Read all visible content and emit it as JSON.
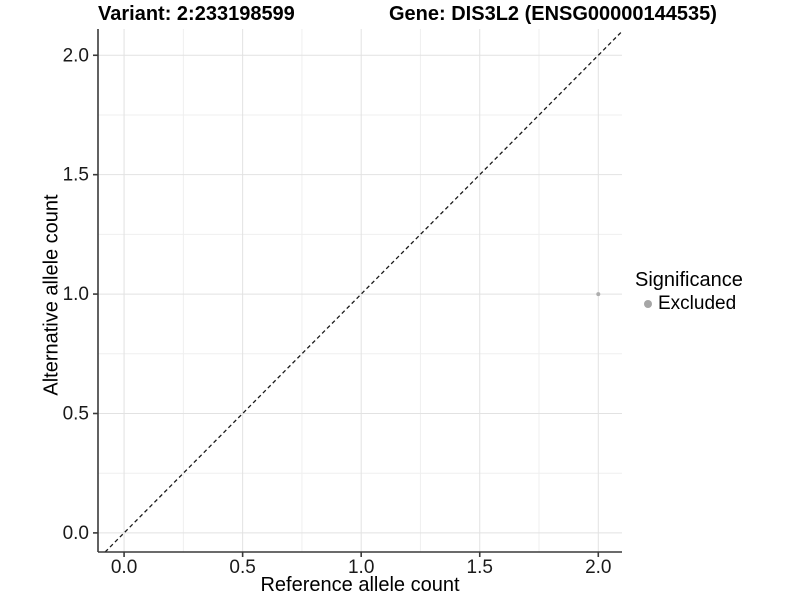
{
  "header": {
    "variant_title": "Variant: 2:233198599",
    "gene_title": "Gene: DIS3L2 (ENSG00000144535)"
  },
  "legend": {
    "title": "Significance",
    "position": "right",
    "items": [
      {
        "label": "Excluded",
        "color": "#a6a6a6",
        "marker": "circle"
      }
    ]
  },
  "chart_data": {
    "type": "scatter",
    "title": "",
    "xlabel": "Reference allele count",
    "ylabel": "Alternative allele count",
    "xlim": [
      -0.11,
      2.1
    ],
    "ylim": [
      -0.08,
      2.11
    ],
    "x_ticks": [
      0.0,
      0.5,
      1.0,
      1.5,
      2.0
    ],
    "x_tick_labels": [
      "0.0",
      "0.5",
      "1.0",
      "1.5",
      "2.0"
    ],
    "y_ticks": [
      0.0,
      0.5,
      1.0,
      1.5,
      2.0
    ],
    "y_tick_labels": [
      "0.0",
      "0.5",
      "1.0",
      "1.5",
      "2.0"
    ],
    "grid": "major+minor",
    "legend_position": "right",
    "series": [
      {
        "name": "Excluded",
        "color": "#adadad",
        "points": [
          {
            "x": 2.0,
            "y": 1.0
          }
        ]
      }
    ],
    "reference_line": {
      "kind": "identity",
      "slope": 1,
      "intercept": 0,
      "style": "dashed",
      "color": "#1a1a1a"
    },
    "style": {
      "background": "#ffffff",
      "grid_major_color": "#e2e2e2",
      "grid_minor_color": "#efefef",
      "axis_line_color": "#3a3a3a",
      "tick_label_color": "#1a1a1a",
      "point_radius": 2,
      "legend_point_radius": 4
    }
  }
}
